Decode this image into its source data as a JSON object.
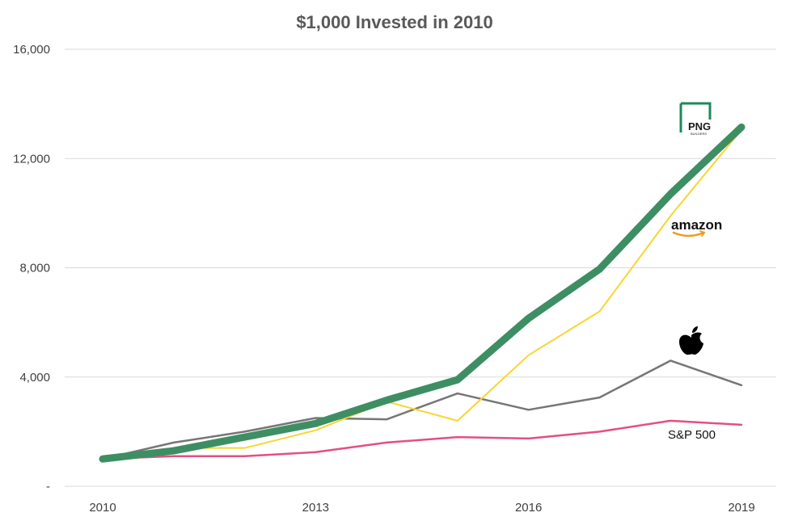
{
  "chart_data": {
    "type": "line",
    "title": "$1,000 Invested in 2010",
    "xlabel": "",
    "ylabel": "",
    "x": [
      2010,
      2011,
      2012,
      2013,
      2014,
      2015,
      2016,
      2017,
      2018,
      2019
    ],
    "x_tick_labels": [
      "2010",
      "2013",
      "2016",
      "2019"
    ],
    "x_tick_values": [
      2010,
      2013,
      2016,
      2019
    ],
    "y_tick_labels": [
      "-",
      "4,000",
      "8,000",
      "12,000",
      "16,000"
    ],
    "y_tick_values": [
      0,
      4000,
      8000,
      12000,
      16000
    ],
    "ylim": [
      0,
      16000
    ],
    "grid": true,
    "series": [
      {
        "key": "png",
        "name": "PNG BUILDERS",
        "color": "#3E8E63",
        "width": 9,
        "values": [
          1000,
          1300,
          1800,
          2300,
          3150,
          3900,
          6150,
          7950,
          10700,
          13150
        ]
      },
      {
        "key": "amazon",
        "name": "amazon",
        "color": "#F9D531",
        "width": 2,
        "values": [
          1000,
          1400,
          1400,
          2050,
          3100,
          2400,
          4800,
          6400,
          9900,
          13050
        ]
      },
      {
        "key": "apple",
        "name": "",
        "color": "#767676",
        "width": 2.5,
        "values": [
          1000,
          1600,
          2000,
          2500,
          2450,
          3400,
          2800,
          3250,
          4600,
          3700
        ]
      },
      {
        "key": "sp500",
        "name": "S&P 500",
        "color": "#E4507F",
        "width": 2.5,
        "values": [
          1000,
          1100,
          1100,
          1250,
          1600,
          1800,
          1750,
          2000,
          2400,
          2250
        ]
      }
    ],
    "series_labels": {
      "png_logo_text": "PNG",
      "png_logo_subtext": "BUILDERS",
      "amazon_logo_text": "amazon",
      "sp500_text": "S&P 500",
      "apple_logo_icon": "apple-logo-icon"
    }
  }
}
